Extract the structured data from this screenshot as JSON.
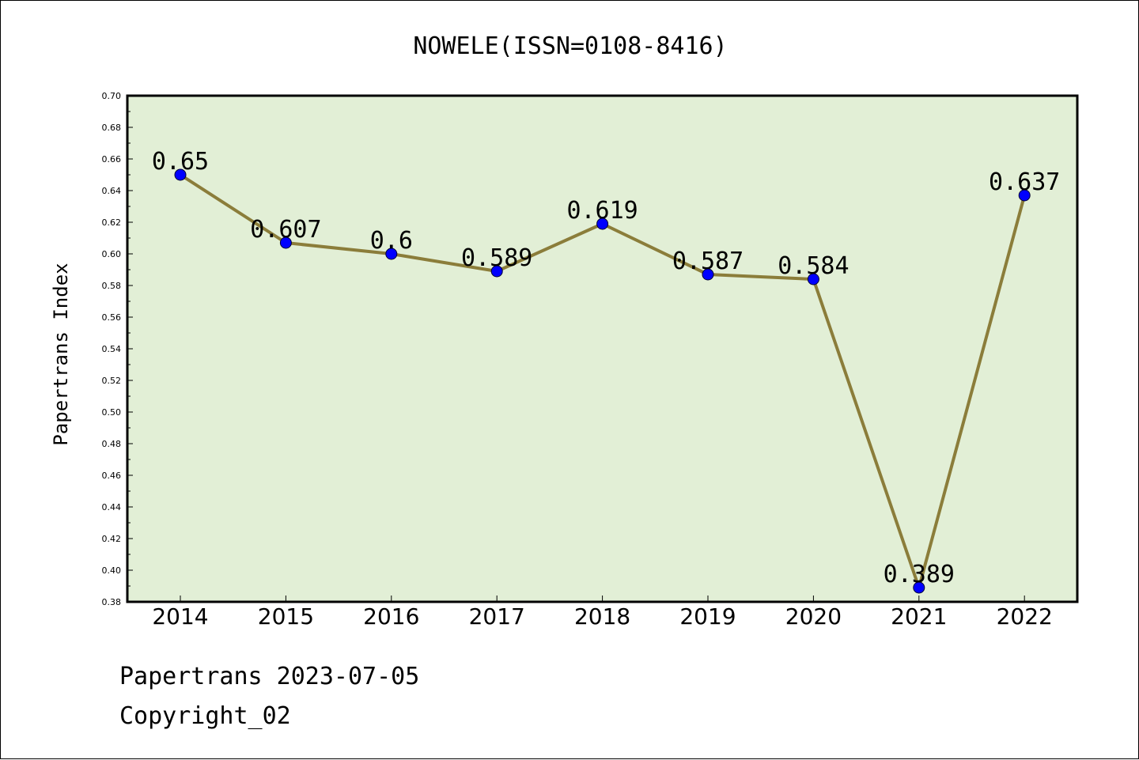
{
  "chart_data": {
    "type": "line",
    "title": "NOWELE(ISSN=0108-8416)",
    "xlabel": "",
    "ylabel": "Papertrans Index",
    "categories": [
      "2014",
      "2015",
      "2016",
      "2017",
      "2018",
      "2019",
      "2020",
      "2021",
      "2022"
    ],
    "series": [
      {
        "values": [
          0.65,
          0.607,
          0.6,
          0.589,
          0.619,
          0.587,
          0.584,
          0.389,
          0.637
        ],
        "labels": [
          "0.65",
          "0.607",
          "0.6",
          "0.589",
          "0.619",
          "0.587",
          "0.584",
          "0.389",
          "0.637"
        ]
      }
    ],
    "ylim": [
      0.38,
      0.7
    ],
    "yticks": [
      "0.38",
      "0.40",
      "0.42",
      "0.44",
      "0.46",
      "0.48",
      "0.50",
      "0.52",
      "0.54",
      "0.56",
      "0.58",
      "0.60",
      "0.62",
      "0.64",
      "0.66",
      "0.68",
      "0.70"
    ],
    "grid": false,
    "legend": "none",
    "colors": {
      "plot_background": "#e2efd6",
      "line": "#8b7d3a",
      "marker": "#0000ff"
    }
  },
  "footer": {
    "date_line": "Papertrans 2023-07-05",
    "copyright_line": "Copyright_02"
  }
}
